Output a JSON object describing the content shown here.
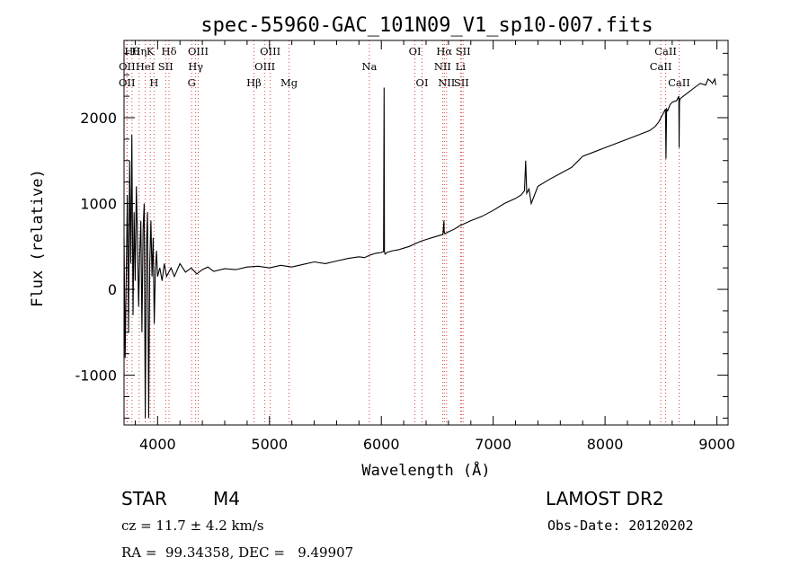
{
  "chart_data": {
    "type": "line",
    "title": "spec-55960-GAC_101N09_V1_sp10-007.fits",
    "xlabel": "Wavelength (Å)",
    "ylabel": "Flux (relative)",
    "xlim": [
      3700,
      9100
    ],
    "ylim": [
      -1580,
      2900
    ],
    "x_ticks": [
      4000,
      5000,
      6000,
      7000,
      8000,
      9000
    ],
    "y_ticks": [
      -1000,
      0,
      1000,
      2000
    ],
    "grid": false,
    "series": [
      {
        "x": [
          3700,
          3710,
          3720,
          3730,
          3740,
          3750,
          3760,
          3770,
          3780,
          3790,
          3800,
          3810,
          3820,
          3830,
          3840,
          3850,
          3860,
          3870,
          3880,
          3890,
          3900,
          3910,
          3920,
          3930,
          3940,
          3950,
          3960,
          3970,
          3980,
          3990,
          4000,
          4020,
          4040,
          4060,
          4080,
          4100,
          4120,
          4150,
          4200,
          4250,
          4300,
          4350,
          4400,
          4450,
          4500,
          4600,
          4700,
          4800,
          4900,
          5000,
          5100,
          5200,
          5300,
          5400,
          5500,
          5600,
          5700,
          5800,
          5850,
          5900,
          5950,
          6000,
          6020,
          6025,
          6028,
          6030,
          6035,
          6050,
          6100,
          6150,
          6200,
          6250,
          6300,
          6350,
          6400,
          6450,
          6500,
          6550,
          6560,
          6562,
          6565,
          6570,
          6600,
          6650,
          6700,
          6750,
          6800,
          6900,
          7000,
          7100,
          7200,
          7250,
          7280,
          7290,
          7300,
          7320,
          7340,
          7400,
          7500,
          7600,
          7700,
          7800,
          7900,
          8000,
          8100,
          8200,
          8300,
          8400,
          8450,
          8480,
          8500,
          8520,
          8540,
          8545,
          8550,
          8560,
          8580,
          8600,
          8640,
          8660,
          8662,
          8665,
          8670,
          8700,
          8750,
          8800,
          8850,
          8900,
          8920,
          8940,
          8960,
          8980,
          8990
        ],
        "y": [
          600,
          -800,
          200,
          1100,
          -500,
          1500,
          300,
          1800,
          -300,
          900,
          100,
          1200,
          600,
          -200,
          400,
          800,
          -500,
          700,
          1000,
          -1500,
          500,
          900,
          -1500,
          300,
          800,
          150,
          600,
          -400,
          200,
          450,
          150,
          250,
          100,
          300,
          150,
          200,
          250,
          150,
          300,
          200,
          250,
          180,
          230,
          260,
          210,
          240,
          230,
          260,
          270,
          250,
          280,
          260,
          290,
          320,
          300,
          330,
          360,
          380,
          370,
          400,
          420,
          430,
          440,
          2350,
          450,
          420,
          410,
          430,
          450,
          460,
          480,
          500,
          530,
          560,
          580,
          600,
          620,
          640,
          800,
          650,
          660,
          650,
          670,
          700,
          740,
          770,
          800,
          850,
          920,
          1000,
          1060,
          1100,
          1150,
          1500,
          1120,
          1170,
          1000,
          1200,
          1280,
          1350,
          1420,
          1550,
          1600,
          1650,
          1700,
          1750,
          1800,
          1850,
          1900,
          1950,
          2000,
          2050,
          2100,
          1520,
          2100,
          2080,
          2150,
          2180,
          2200,
          2250,
          1650,
          2180,
          2220,
          2250,
          2300,
          2350,
          2400,
          2380,
          2450,
          2430,
          2400,
          2450,
          2380
        ]
      }
    ],
    "annotations": [
      {
        "row": 1,
        "x": 3771,
        "label": "Hθ"
      },
      {
        "row": 1,
        "x": 3835,
        "label": "Hη"
      },
      {
        "row": 1,
        "x": 3934,
        "label": "K"
      },
      {
        "row": 1,
        "x": 4102,
        "label": "Hδ"
      },
      {
        "row": 1,
        "x": 4363,
        "label": "OIII"
      },
      {
        "row": 1,
        "x": 5007,
        "label": "OIII"
      },
      {
        "row": 1,
        "x": 6300,
        "label": "OI"
      },
      {
        "row": 1,
        "x": 6563,
        "label": "Hα"
      },
      {
        "row": 1,
        "x": 6731,
        "label": "SII"
      },
      {
        "row": 1,
        "x": 8542,
        "label": "CaII"
      },
      {
        "row": 2,
        "x": 3727,
        "label": "OII"
      },
      {
        "row": 2,
        "x": 3889,
        "label": "HeI"
      },
      {
        "row": 2,
        "x": 4072,
        "label": "SII"
      },
      {
        "row": 2,
        "x": 4340,
        "label": "Hγ"
      },
      {
        "row": 2,
        "x": 4959,
        "label": "OIII"
      },
      {
        "row": 2,
        "x": 5893,
        "label": "Na"
      },
      {
        "row": 2,
        "x": 6548,
        "label": "NII"
      },
      {
        "row": 2,
        "x": 6708,
        "label": "Li"
      },
      {
        "row": 2,
        "x": 8498,
        "label": "CaII"
      },
      {
        "row": 3,
        "x": 3726,
        "label": "OII"
      },
      {
        "row": 3,
        "x": 3968,
        "label": "H"
      },
      {
        "row": 3,
        "x": 4304,
        "label": "G"
      },
      {
        "row": 3,
        "x": 4861,
        "label": "Hβ"
      },
      {
        "row": 3,
        "x": 5175,
        "label": "Mg"
      },
      {
        "row": 3,
        "x": 6364,
        "label": "OI"
      },
      {
        "row": 3,
        "x": 6583,
        "label": "NII"
      },
      {
        "row": 3,
        "x": 6716,
        "label": "SII"
      },
      {
        "row": 3,
        "x": 8662,
        "label": "CaII"
      }
    ],
    "line_colors": {
      "spectrum": "#000000",
      "markers": "#d94040"
    }
  },
  "info": {
    "object_class": "STAR",
    "subclass": "M4",
    "survey": "LAMOST DR2",
    "redshift": "cz = 11.7 ± 4.2 km/s",
    "obs_date": "Obs-Date: 20120202",
    "coords": "RA =  99.34358, DEC =   9.49907"
  }
}
